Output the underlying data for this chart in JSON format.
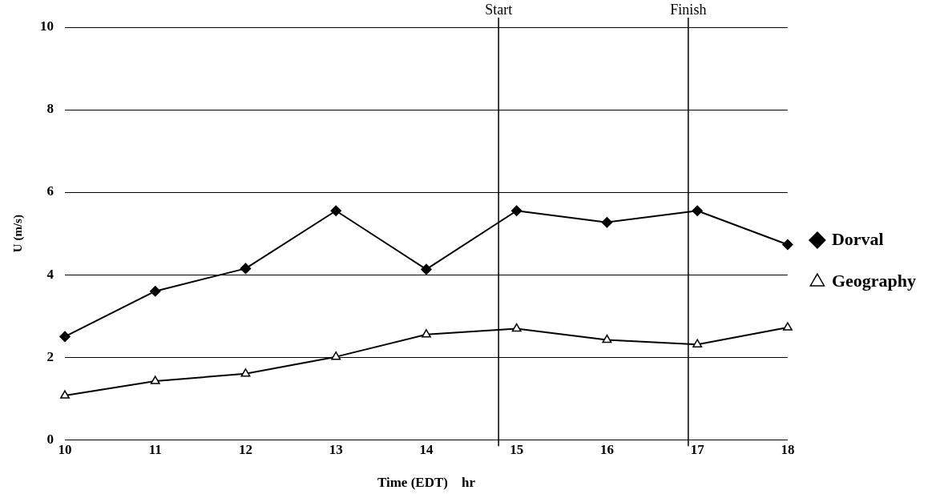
{
  "chart_data": {
    "type": "line",
    "xlabel": "Time (EDT)    hr",
    "ylabel": "U (m/s)",
    "x": [
      10,
      11,
      12,
      13,
      14,
      15,
      16,
      17,
      18
    ],
    "series": [
      {
        "name": "Dorval",
        "color": "#000000",
        "marker": "diamond",
        "values": [
          2.5,
          3.6,
          4.15,
          5.55,
          4.13,
          5.55,
          5.27,
          5.55,
          4.73
        ]
      },
      {
        "name": "Geography",
        "color": "#000000",
        "marker": "triangle",
        "values": [
          1.07,
          1.42,
          1.6,
          2.01,
          2.55,
          2.69,
          2.42,
          2.31,
          2.72
        ]
      }
    ],
    "xlim": [
      10,
      18
    ],
    "xticks": [
      10,
      11,
      12,
      13,
      14,
      15,
      16,
      17,
      18
    ],
    "ylim": [
      0,
      10
    ],
    "yticks": [
      0,
      2,
      4,
      6,
      8,
      10
    ],
    "ref_lines": [
      {
        "axis": "x",
        "value": 14.8,
        "label": "Start",
        "color": "#000000"
      },
      {
        "axis": "x",
        "value": 16.9,
        "label": "Finish",
        "color": "#000000"
      }
    ],
    "grid": "y",
    "legend": "right",
    "line_style": "solid"
  }
}
